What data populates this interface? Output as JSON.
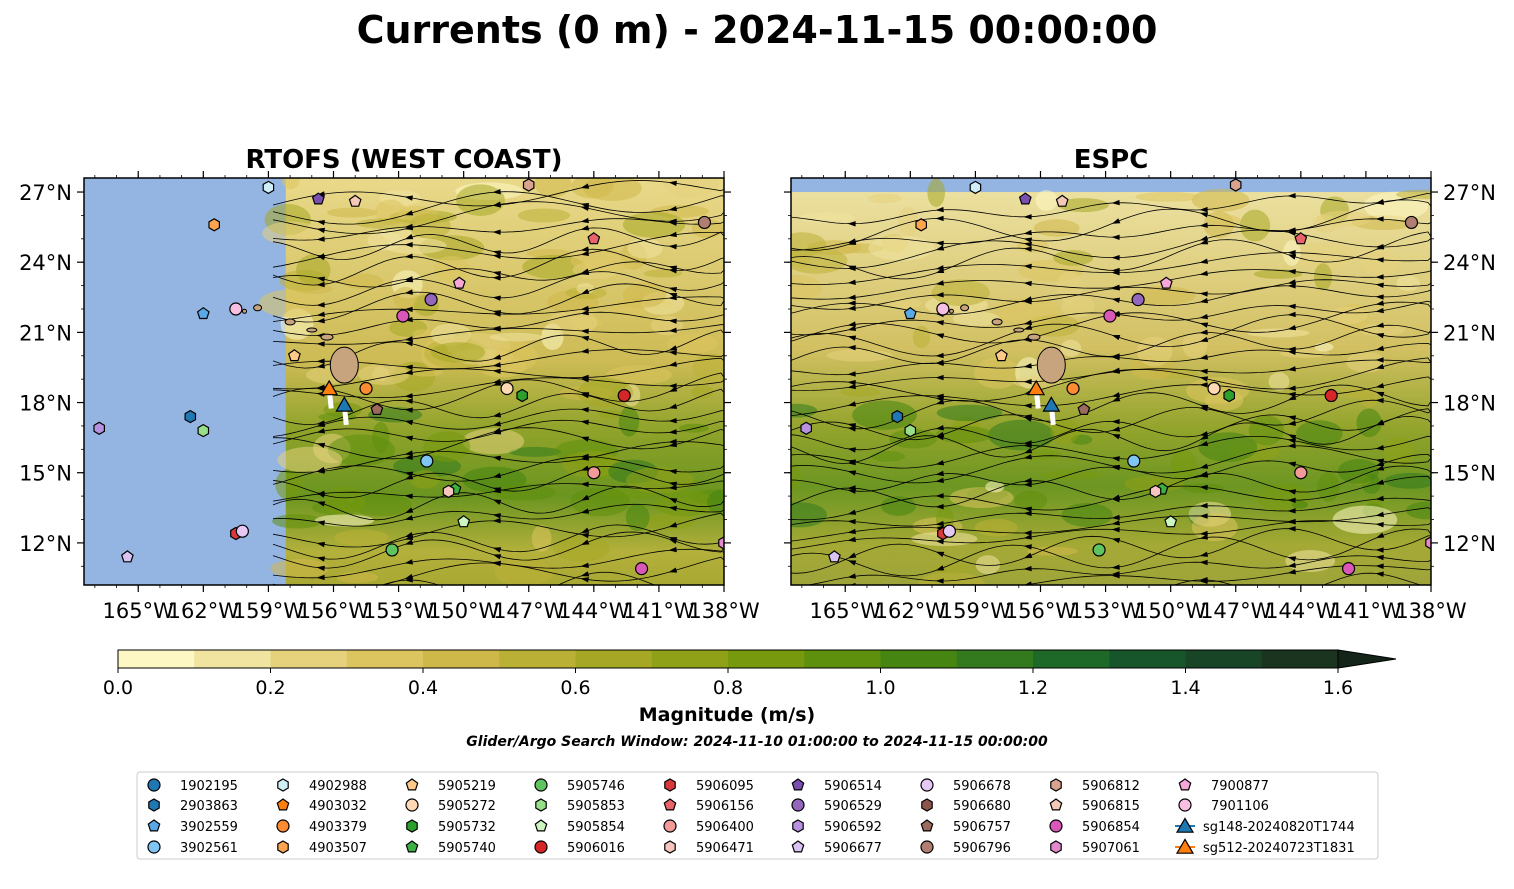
{
  "figure": {
    "title": "Currents (0 m) - 2024-11-15 00:00:00",
    "search_window_note": "Glider/Argo Search Window: 2024-11-10 01:00:00 to 2024-11-15 00:00:00"
  },
  "chart_data": [
    {
      "type": "map",
      "title": "RTOFS (WEST COAST)",
      "xlim": [
        -167.5,
        -138
      ],
      "ylim": [
        10.2,
        27.6
      ],
      "x_ticks": [
        -165,
        -162,
        -159,
        -156,
        -153,
        -150,
        -147,
        -144,
        -141,
        -138
      ],
      "x_tick_labels": [
        "165°W",
        "162°W",
        "159°W",
        "156°W",
        "153°W",
        "150°W",
        "147°W",
        "144°W",
        "141°W",
        "138°W"
      ],
      "y_ticks": [
        12,
        15,
        18,
        21,
        24,
        27
      ],
      "y_tick_labels": [
        "12°N",
        "15°N",
        "18°N",
        "21°N",
        "24°N",
        "27°N"
      ],
      "model_domain_west_edge": -158.2,
      "y_labels_side": "left"
    },
    {
      "type": "map",
      "title": "ESPC",
      "xlim": [
        -167.5,
        -138
      ],
      "ylim": [
        10.2,
        27.6
      ],
      "x_ticks": [
        -165,
        -162,
        -159,
        -156,
        -153,
        -150,
        -147,
        -144,
        -141,
        -138
      ],
      "x_tick_labels": [
        "165°W",
        "162°W",
        "159°W",
        "156°W",
        "153°W",
        "150°W",
        "147°W",
        "144°W",
        "141°W",
        "138°W"
      ],
      "y_ticks": [
        12,
        15,
        18,
        21,
        24,
        27
      ],
      "y_tick_labels": [
        "12°N",
        "15°N",
        "18°N",
        "21°N",
        "24°N",
        "27°N"
      ],
      "model_domain_north_edge": 27.0,
      "y_labels_side": "right"
    }
  ],
  "colorbar": {
    "label": "Magnitude (m/s)",
    "min": 0.0,
    "max": 1.6,
    "step": 0.1,
    "tick_values": [
      0.0,
      0.2,
      0.4,
      0.6,
      0.8,
      1.0,
      1.2,
      1.4,
      1.6
    ],
    "tick_labels": [
      "0.0",
      "0.2",
      "0.4",
      "0.6",
      "0.8",
      "1.0",
      "1.2",
      "1.4",
      "1.6"
    ],
    "colors": [
      "#fdf7c4",
      "#f1e4a0",
      "#e6d27d",
      "#dcc45f",
      "#cfb84a",
      "#bbb036",
      "#a6a825",
      "#8fa117",
      "#77990e",
      "#5e900d",
      "#468511",
      "#327a1d",
      "#1f6928",
      "#17562a",
      "#194527",
      "#1b3420"
    ],
    "extend_color": "#142419",
    "extend": "max"
  },
  "platforms": [
    {
      "id": "1902195",
      "marker": "circle",
      "color": "#1f77b4",
      "lon": null,
      "lat": null
    },
    {
      "id": "2903863",
      "marker": "hexagon",
      "color": "#1f77b4",
      "lon": -162.6,
      "lat": 17.4
    },
    {
      "id": "3902559",
      "marker": "pentagon",
      "color": "#5aa9e6",
      "lon": -162.0,
      "lat": 21.8
    },
    {
      "id": "3902561",
      "marker": "circle",
      "color": "#7fc6f5",
      "lon": -151.7,
      "lat": 15.5
    },
    {
      "id": "4902988",
      "marker": "hexagon",
      "color": "#cfeef7",
      "lon": -159.0,
      "lat": 27.2
    },
    {
      "id": "4903032",
      "marker": "pentagon",
      "color": "#ff7f0e",
      "lon": null,
      "lat": null
    },
    {
      "id": "4903379",
      "marker": "circle",
      "color": "#ff8c33",
      "lon": -154.5,
      "lat": 18.6
    },
    {
      "id": "4903507",
      "marker": "hexagon",
      "color": "#ffa550",
      "lon": -161.5,
      "lat": 25.6
    },
    {
      "id": "5905219",
      "marker": "pentagon",
      "color": "#ffc98a",
      "lon": -157.8,
      "lat": 20.0
    },
    {
      "id": "5905272",
      "marker": "circle",
      "color": "#ffd9b3",
      "lon": -148.0,
      "lat": 18.6
    },
    {
      "id": "5905732",
      "marker": "hexagon",
      "color": "#2ca02c",
      "lon": -147.3,
      "lat": 18.3
    },
    {
      "id": "5905740",
      "marker": "pentagon",
      "color": "#3cb043",
      "lon": -150.4,
      "lat": 14.3
    },
    {
      "id": "5905746",
      "marker": "circle",
      "color": "#5fc45f",
      "lon": -153.3,
      "lat": 11.7
    },
    {
      "id": "5905853",
      "marker": "hexagon",
      "color": "#98df8a",
      "lon": -162.0,
      "lat": 16.8
    },
    {
      "id": "5905854",
      "marker": "pentagon",
      "color": "#cdf5c0",
      "lon": -150.0,
      "lat": 12.9
    },
    {
      "id": "5906016",
      "marker": "circle",
      "color": "#d62728",
      "lon": -142.6,
      "lat": 18.3
    },
    {
      "id": "5906095",
      "marker": "hexagon",
      "color": "#d9393a",
      "lon": -160.5,
      "lat": 12.4
    },
    {
      "id": "5906156",
      "marker": "pentagon",
      "color": "#e8636a",
      "lon": -144.0,
      "lat": 25.0
    },
    {
      "id": "5906400",
      "marker": "circle",
      "color": "#f29a9a",
      "lon": -144.0,
      "lat": 15.0
    },
    {
      "id": "5906471",
      "marker": "hexagon",
      "color": "#f7c4c0",
      "lon": -150.7,
      "lat": 14.2
    },
    {
      "id": "5906514",
      "marker": "pentagon",
      "color": "#7b4fb0",
      "lon": -156.7,
      "lat": 26.7
    },
    {
      "id": "5906529",
      "marker": "circle",
      "color": "#9467bd",
      "lon": -151.5,
      "lat": 22.4
    },
    {
      "id": "5906592",
      "marker": "hexagon",
      "color": "#b891e0",
      "lon": -166.8,
      "lat": 16.9
    },
    {
      "id": "5906677",
      "marker": "pentagon",
      "color": "#d8c3f2",
      "lon": -165.5,
      "lat": 11.4
    },
    {
      "id": "5906678",
      "marker": "circle",
      "color": "#e6c8f5",
      "lon": -160.2,
      "lat": 12.5
    },
    {
      "id": "5906680",
      "marker": "hexagon",
      "color": "#8c564b",
      "lon": null,
      "lat": null
    },
    {
      "id": "5906757",
      "marker": "pentagon",
      "color": "#9c6a5e",
      "lon": -154.0,
      "lat": 17.7
    },
    {
      "id": "5906796",
      "marker": "circle",
      "color": "#b07f72",
      "lon": -138.9,
      "lat": 25.7
    },
    {
      "id": "5906812",
      "marker": "hexagon",
      "color": "#d9a38f",
      "lon": -147.0,
      "lat": 27.3
    },
    {
      "id": "5906815",
      "marker": "pentagon",
      "color": "#f5c9b8",
      "lon": -155.0,
      "lat": 26.6
    },
    {
      "id": "5906854",
      "marker": "circle",
      "color": "#d957b8",
      "lon": -141.8,
      "lat": 10.9
    },
    {
      "id": "5907061",
      "marker": "hexagon",
      "color": "#e589cf",
      "lon": -138.0,
      "lat": 12.0
    },
    {
      "id": "7900877",
      "marker": "pentagon",
      "color": "#f7a6d8",
      "lon": -150.2,
      "lat": 23.1
    },
    {
      "id": "7901106",
      "marker": "circle",
      "color": "#f7c0e0",
      "lon": -160.5,
      "lat": 22.0
    },
    {
      "id": "sg148-20240820T1744",
      "marker": "triangle",
      "color": "#1f77b4",
      "lon": -155.5,
      "lat": 17.9,
      "track": true
    },
    {
      "id": "sg512-20240723T1831",
      "marker": "triangle",
      "color": "#ff7f0e",
      "lon": -156.2,
      "lat": 18.6,
      "track": true
    }
  ],
  "extra_markers": [
    {
      "marker": "circle",
      "color": "#d957b8",
      "lon": -152.8,
      "lat": 21.7
    }
  ],
  "colors": {
    "land": "#c8a47e",
    "ocean_outside": "#94b4e2",
    "streamline": "#000000"
  }
}
